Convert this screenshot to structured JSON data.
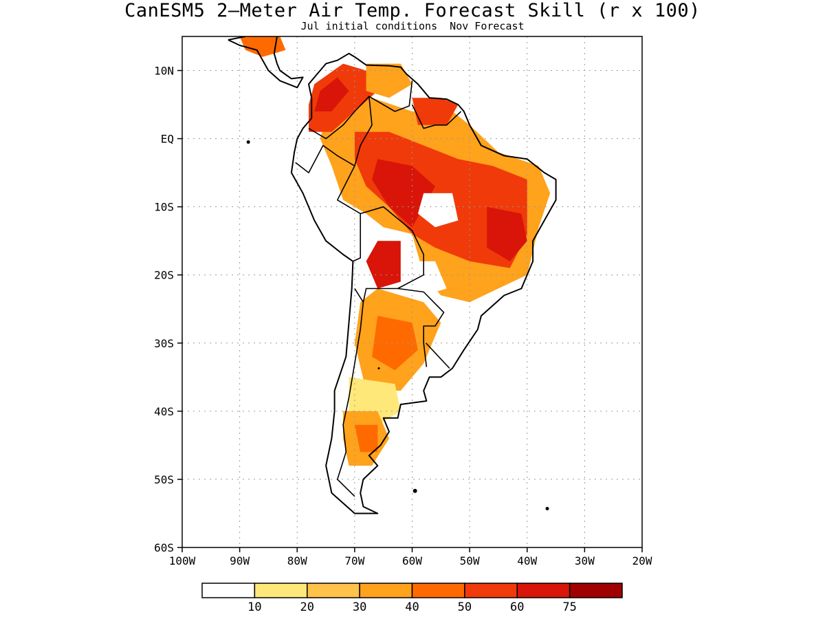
{
  "title": "CanESM5 2–Meter Air Temp. Forecast Skill (r x 100)",
  "subtitle": "Jul initial conditions  Nov Forecast",
  "map": {
    "lon_range": [
      -100,
      -20
    ],
    "lat_range": [
      -60,
      15
    ],
    "lat_ticks": [
      {
        "value": 10,
        "label": "10N"
      },
      {
        "value": 0,
        "label": "EQ"
      },
      {
        "value": -10,
        "label": "10S"
      },
      {
        "value": -20,
        "label": "20S"
      },
      {
        "value": -30,
        "label": "30S"
      },
      {
        "value": -40,
        "label": "40S"
      },
      {
        "value": -50,
        "label": "50S"
      },
      {
        "value": -60,
        "label": "60S"
      }
    ],
    "lon_ticks": [
      {
        "value": -100,
        "label": "100W"
      },
      {
        "value": -90,
        "label": "90W"
      },
      {
        "value": -80,
        "label": "80W"
      },
      {
        "value": -70,
        "label": "70W"
      },
      {
        "value": -60,
        "label": "60W"
      },
      {
        "value": -50,
        "label": "50W"
      },
      {
        "value": -40,
        "label": "40W"
      },
      {
        "value": -30,
        "label": "30W"
      },
      {
        "value": -20,
        "label": "20W"
      }
    ],
    "grid": "dotted"
  },
  "colorbar": {
    "colors": [
      "#ffffff",
      "#ffe87a",
      "#ffc24a",
      "#ffa21c",
      "#ff6a00",
      "#f03a0a",
      "#d81508",
      "#a10000"
    ],
    "labels": [
      "10",
      "20",
      "30",
      "40",
      "50",
      "60",
      "75"
    ]
  },
  "regions": [
    {
      "name": "brazil-amazon",
      "level": 3,
      "pts": [
        [
          -73,
          5
        ],
        [
          -67,
          6
        ],
        [
          -60,
          4
        ],
        [
          -53,
          4
        ],
        [
          -50,
          2
        ],
        [
          -45,
          -2
        ],
        [
          -38,
          -4
        ],
        [
          -36,
          -8
        ],
        [
          -38,
          -13
        ],
        [
          -40,
          -20
        ],
        [
          -45,
          -22
        ],
        [
          -50,
          -24
        ],
        [
          -55,
          -23
        ],
        [
          -58,
          -20
        ],
        [
          -60,
          -14
        ],
        [
          -65,
          -13
        ],
        [
          -68,
          -11
        ],
        [
          -72,
          -9
        ],
        [
          -74,
          -4
        ],
        [
          -76,
          0
        ],
        [
          -75,
          3
        ]
      ]
    },
    {
      "name": "amazon-core",
      "level": 5,
      "pts": [
        [
          -70,
          1
        ],
        [
          -64,
          1
        ],
        [
          -58,
          -1
        ],
        [
          -52,
          -3
        ],
        [
          -46,
          -4
        ],
        [
          -40,
          -6
        ],
        [
          -40,
          -14
        ],
        [
          -43,
          -19
        ],
        [
          -50,
          -18
        ],
        [
          -56,
          -16
        ],
        [
          -60,
          -14
        ],
        [
          -64,
          -10
        ],
        [
          -68,
          -7
        ],
        [
          -70,
          -3
        ]
      ]
    },
    {
      "name": "central-hotspot",
      "level": 6,
      "pts": [
        [
          -66,
          -3
        ],
        [
          -60,
          -4
        ],
        [
          -56,
          -7
        ],
        [
          -60,
          -13
        ],
        [
          -64,
          -10
        ],
        [
          -67,
          -6
        ]
      ]
    },
    {
      "name": "east-hotspot",
      "level": 6,
      "pts": [
        [
          -47,
          -10
        ],
        [
          -41,
          -11
        ],
        [
          -40,
          -15
        ],
        [
          -43,
          -18
        ],
        [
          -47,
          -16
        ]
      ]
    },
    {
      "name": "bolivia-hot",
      "level": 6,
      "pts": [
        [
          -66,
          -15
        ],
        [
          -62,
          -15
        ],
        [
          -62,
          -21
        ],
        [
          -66,
          -22
        ],
        [
          -68,
          -18
        ]
      ]
    },
    {
      "name": "colombia",
      "level": 5,
      "pts": [
        [
          -77,
          8
        ],
        [
          -72,
          11
        ],
        [
          -68,
          10
        ],
        [
          -66,
          7
        ],
        [
          -70,
          4
        ],
        [
          -74,
          1
        ],
        [
          -78,
          1
        ],
        [
          -78,
          5
        ]
      ]
    },
    {
      "name": "colombia-core",
      "level": 6,
      "pts": [
        [
          -76,
          7
        ],
        [
          -73,
          9
        ],
        [
          -71,
          7
        ],
        [
          -74,
          4
        ],
        [
          -77,
          4
        ]
      ]
    },
    {
      "name": "venezuela",
      "level": 3,
      "pts": [
        [
          -68,
          11
        ],
        [
          -62,
          11
        ],
        [
          -60,
          8
        ],
        [
          -64,
          6
        ],
        [
          -68,
          7
        ]
      ]
    },
    {
      "name": "guianas",
      "level": 5,
      "pts": [
        [
          -60,
          6
        ],
        [
          -55,
          6
        ],
        [
          -52,
          5
        ],
        [
          -54,
          2
        ],
        [
          -59,
          2
        ]
      ]
    },
    {
      "name": "argentina-north",
      "level": 3,
      "pts": [
        [
          -66,
          -22
        ],
        [
          -58,
          -24
        ],
        [
          -55,
          -27
        ],
        [
          -58,
          -33
        ],
        [
          -62,
          -37
        ],
        [
          -68,
          -37
        ],
        [
          -70,
          -30
        ],
        [
          -69,
          -24
        ]
      ]
    },
    {
      "name": "argentina-core",
      "level": 4,
      "pts": [
        [
          -66,
          -26
        ],
        [
          -60,
          -27
        ],
        [
          -59,
          -31
        ],
        [
          -63,
          -34
        ],
        [
          -67,
          -32
        ]
      ]
    },
    {
      "name": "argentina-south",
      "level": 1,
      "pts": [
        [
          -71,
          -35
        ],
        [
          -63,
          -36
        ],
        [
          -62,
          -40
        ],
        [
          -66,
          -42
        ],
        [
          -71,
          -43
        ]
      ]
    },
    {
      "name": "patagonia",
      "level": 3,
      "pts": [
        [
          -72,
          -40
        ],
        [
          -66,
          -40
        ],
        [
          -64,
          -44
        ],
        [
          -67,
          -48
        ],
        [
          -71,
          -48
        ],
        [
          -72,
          -44
        ]
      ]
    },
    {
      "name": "patagonia-core",
      "level": 4,
      "pts": [
        [
          -70,
          -42
        ],
        [
          -66,
          -42
        ],
        [
          -66,
          -46
        ],
        [
          -69,
          -46
        ]
      ]
    },
    {
      "name": "central-america",
      "level": 4,
      "pts": [
        [
          -90,
          15
        ],
        [
          -83,
          15
        ],
        [
          -82,
          13
        ],
        [
          -86,
          12
        ],
        [
          -89,
          13
        ]
      ]
    },
    {
      "name": "pantanal-white",
      "level": 0,
      "pts": [
        [
          -61,
          -18
        ],
        [
          -56,
          -18
        ],
        [
          -54,
          -22
        ],
        [
          -58,
          -23
        ],
        [
          -61,
          -21
        ]
      ]
    },
    {
      "name": "amazon-white",
      "level": 0,
      "pts": [
        [
          -58,
          -8
        ],
        [
          -53,
          -8
        ],
        [
          -52,
          -12
        ],
        [
          -56,
          -13
        ],
        [
          -59,
          -11
        ]
      ]
    },
    {
      "name": "peru-white",
      "level": 0,
      "pts": [
        [
          -80,
          -3
        ],
        [
          -77,
          -3
        ],
        [
          -75,
          -7
        ],
        [
          -77,
          -12
        ],
        [
          -79,
          -9
        ]
      ]
    }
  ]
}
